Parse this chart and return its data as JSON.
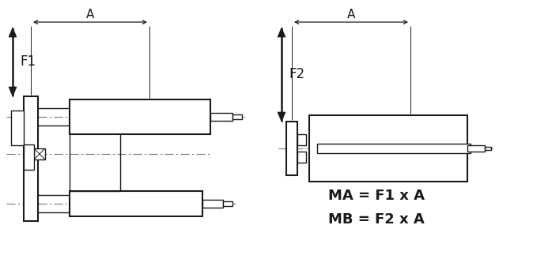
{
  "bg_color": "#ffffff",
  "line_color": "#1a1a1a",
  "dash_color": "#777777",
  "text_color": "#1a1a1a",
  "fig_width": 6.98,
  "fig_height": 3.42,
  "formula1": "MA = F1 x A",
  "formula2": "MB = F2 x A",
  "label_A": "A",
  "label_F1": "F1",
  "label_F2": "F2"
}
